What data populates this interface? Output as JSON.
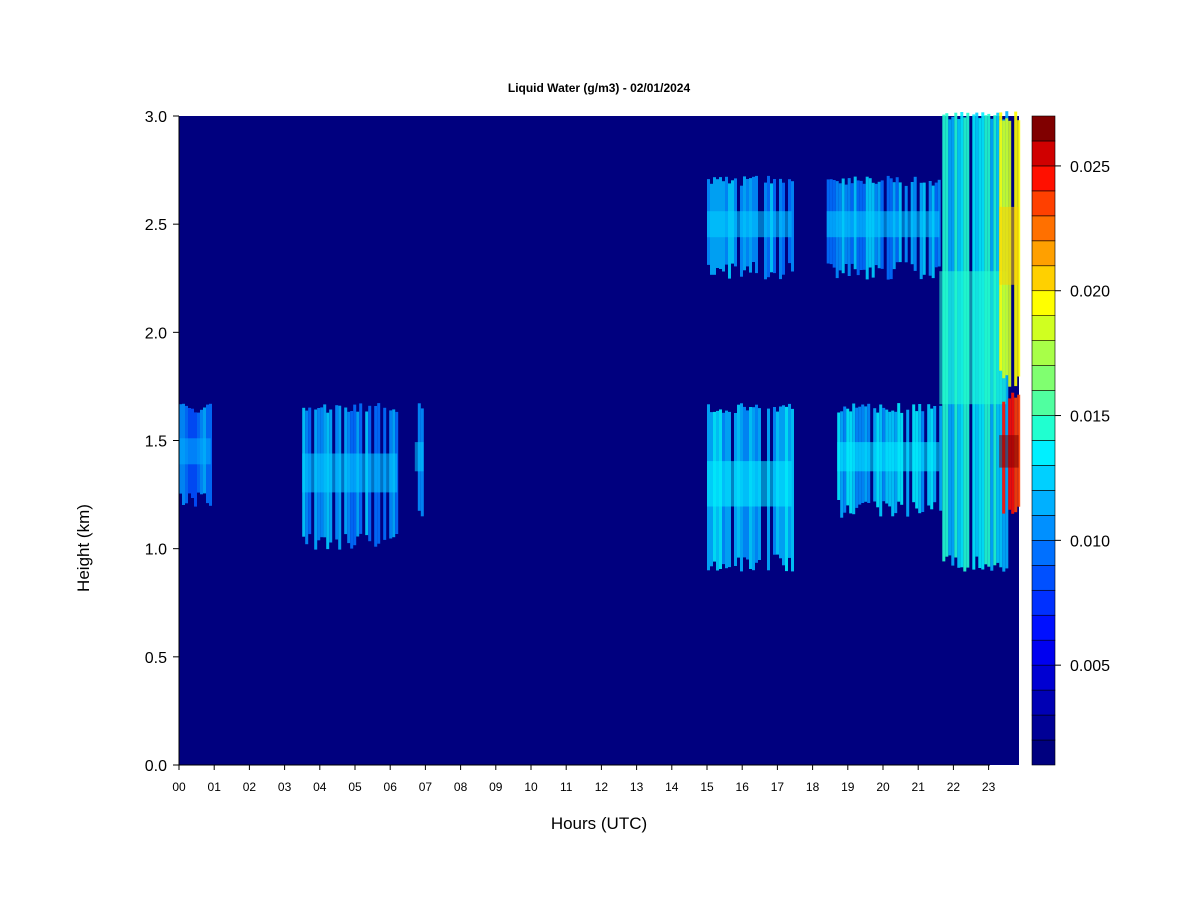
{
  "chart_data": {
    "type": "heatmap",
    "title": "Liquid Water (g/m3) - 02/01/2024",
    "xlabel": "Hours (UTC)",
    "ylabel": "Height (km)",
    "xlim": [
      0,
      24
    ],
    "ylim": [
      0,
      3
    ],
    "x_tick_labels": [
      "00",
      "01",
      "02",
      "03",
      "04",
      "05",
      "06",
      "07",
      "08",
      "09",
      "10",
      "11",
      "12",
      "13",
      "14",
      "15",
      "16",
      "17",
      "18",
      "19",
      "20",
      "21",
      "22",
      "23"
    ],
    "y_tick_labels": [
      "0.0",
      "0.5",
      "1.0",
      "1.5",
      "2.0",
      "2.5",
      "3.0"
    ],
    "y_ticks": [
      0.0,
      0.5,
      1.0,
      1.5,
      2.0,
      2.5,
      3.0
    ],
    "colorbar": {
      "min": 0.001,
      "max": 0.027,
      "levels": 26,
      "tick_labels": [
        "0.005",
        "0.010",
        "0.015",
        "0.020",
        "0.025"
      ],
      "tick_values": [
        0.005,
        0.01,
        0.015,
        0.02,
        0.025
      ],
      "colors": [
        "#00007f",
        "#000096",
        "#0000b4",
        "#0000d2",
        "#0000f0",
        "#0010ff",
        "#0030ff",
        "#0050ff",
        "#0070ff",
        "#0090ff",
        "#00b0ff",
        "#00d0ff",
        "#00f0ff",
        "#20ffd0",
        "#50ffa0",
        "#80ff70",
        "#a8ff48",
        "#d0ff20",
        "#ffff00",
        "#ffd000",
        "#ffa000",
        "#ff7000",
        "#ff4000",
        "#ff1000",
        "#d00000",
        "#800000"
      ]
    },
    "features": [
      {
        "x": [
          0.0,
          0.9
        ],
        "y": [
          1.25,
          1.65
        ],
        "value": 0.01,
        "note": "intermittent streaks"
      },
      {
        "x": [
          3.5,
          6.2
        ],
        "y": [
          1.05,
          1.65
        ],
        "value": 0.011
      },
      {
        "x": [
          6.7,
          6.95
        ],
        "y": [
          1.2,
          1.65
        ],
        "value": 0.011
      },
      {
        "x": [
          15.0,
          17.4
        ],
        "y": [
          0.95,
          1.65
        ],
        "value": 0.012
      },
      {
        "x": [
          15.0,
          17.4
        ],
        "y": [
          2.3,
          2.7
        ],
        "value": 0.011
      },
      {
        "x": [
          18.4,
          21.6
        ],
        "y": [
          2.3,
          2.7
        ],
        "value": 0.011
      },
      {
        "x": [
          18.7,
          21.6
        ],
        "y": [
          1.2,
          1.65
        ],
        "value": 0.012
      },
      {
        "x": [
          21.6,
          23.5
        ],
        "y": [
          0.95,
          3.0
        ],
        "value": 0.013
      },
      {
        "x": [
          23.3,
          23.85
        ],
        "y": [
          1.2,
          1.7
        ],
        "value": 0.025
      },
      {
        "x": [
          23.3,
          23.85
        ],
        "y": [
          1.8,
          3.0
        ],
        "value": 0.019
      }
    ]
  }
}
